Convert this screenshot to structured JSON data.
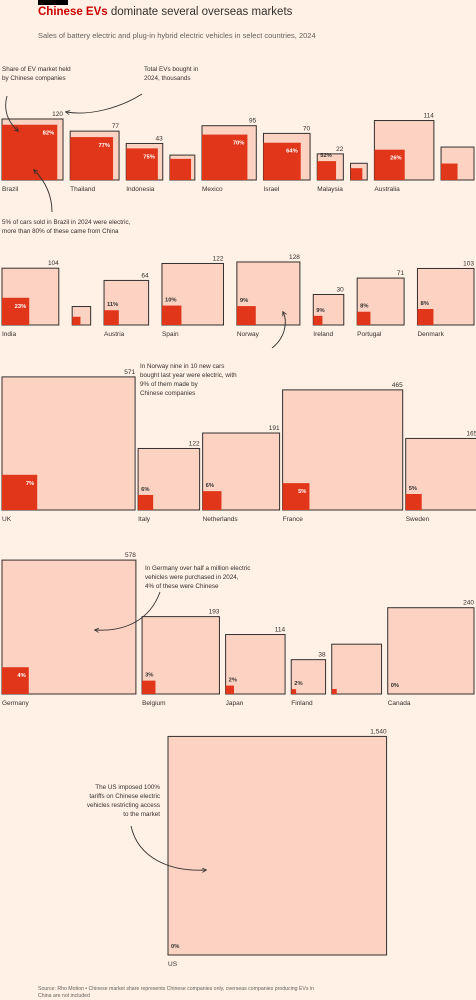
{
  "header": {
    "title_highlight": "Chinese EVs",
    "title_rest": " dominate several overseas markets",
    "subtitle": "Sales of battery electric and plug-in hybrid electric vehicles in select countries, 2024"
  },
  "source": "Source: Rho Motion • Chinese market share represents Chinese companies only, overseas companies producing EVs in China are not included",
  "colors": {
    "background": "#fff1e5",
    "outer_fill": "#fcd3c3",
    "inner_fill": "#e2361a",
    "outline": "#33302e"
  },
  "annotations": [
    {
      "id": "share-label",
      "lines": [
        "Share of EV market held",
        "by Chinese companies"
      ]
    },
    {
      "id": "total-label",
      "lines": [
        "Total EVs bought in",
        "2024, thousands"
      ]
    },
    {
      "id": "brazil-note",
      "lines": [
        "5% of cars sold in Brazil in 2024 were electric,",
        "more than 80% of these came from China"
      ]
    },
    {
      "id": "norway-note",
      "lines": [
        "In Norway nine in 10 new cars",
        "bought last year were electric, with",
        "9% of them made by",
        "Chinese companies"
      ]
    },
    {
      "id": "germany-note",
      "lines": [
        "In Germany over half a million electric",
        "vehicles were purchased in 2024,",
        "4% of these were Chinese"
      ]
    },
    {
      "id": "us-note",
      "lines": [
        "The US imposed 100%",
        "tariffs on Chinese electric",
        "vehicles restricting access",
        "to the market"
      ]
    }
  ],
  "chart_data": {
    "type": "area",
    "title": "Chinese EVs dominate several overseas markets",
    "value_unit": "Total EVs bought in 2024, thousands",
    "share_unit": "Share of EV market held by Chinese companies",
    "countries": [
      {
        "name": "Brazil",
        "total": 120,
        "share": 82,
        "total_label": "120",
        "share_label": "82%"
      },
      {
        "name": "Thailand",
        "total": 77,
        "share": 77,
        "total_label": "77",
        "share_label": "77%"
      },
      {
        "name": "Indonesia",
        "total": 43,
        "share": 75,
        "total_label": "43",
        "share_label": "75%"
      },
      {
        "name": "",
        "total": 20,
        "share": 72,
        "total_label": "",
        "share_label": ""
      },
      {
        "name": "Mexico",
        "total": 95,
        "share": 70,
        "total_label": "95",
        "share_label": "70%"
      },
      {
        "name": "Israel",
        "total": 70,
        "share": 64,
        "total_label": "70",
        "share_label": "64%"
      },
      {
        "name": "Malaysia",
        "total": 22,
        "share": 52,
        "total_label": "22",
        "share_label": "52%"
      },
      {
        "name": "",
        "total": 9,
        "share": 50,
        "total_label": "",
        "share_label": ""
      },
      {
        "name": "Australia",
        "total": 114,
        "share": 26,
        "total_label": "114",
        "share_label": "26%"
      },
      {
        "name": "",
        "total": 35,
        "share": 25,
        "total_label": "",
        "share_label": ""
      },
      {
        "name": "India",
        "total": 104,
        "share": 23,
        "total_label": "104",
        "share_label": "23%"
      },
      {
        "name": "",
        "total": 11,
        "share": 20,
        "total_label": "",
        "share_label": ""
      },
      {
        "name": "Austria",
        "total": 64,
        "share": 11,
        "total_label": "64",
        "share_label": "11%"
      },
      {
        "name": "Spain",
        "total": 122,
        "share": 10,
        "total_label": "122",
        "share_label": "10%"
      },
      {
        "name": "Norway",
        "total": 128,
        "share": 9,
        "total_label": "128",
        "share_label": "9%"
      },
      {
        "name": "Ireland",
        "total": 30,
        "share": 9,
        "total_label": "30",
        "share_label": "9%"
      },
      {
        "name": "Portugal",
        "total": 71,
        "share": 8,
        "total_label": "71",
        "share_label": "8%"
      },
      {
        "name": "Denmark",
        "total": 103,
        "share": 8,
        "total_label": "103",
        "share_label": "8%"
      },
      {
        "name": "UK",
        "total": 571,
        "share": 7,
        "total_label": "571",
        "share_label": "7%"
      },
      {
        "name": "Italy",
        "total": 122,
        "share": 6,
        "total_label": "122",
        "share_label": "6%"
      },
      {
        "name": "Netherlands",
        "total": 191,
        "share": 6,
        "total_label": "191",
        "share_label": "6%"
      },
      {
        "name": "France",
        "total": 465,
        "share": 5,
        "total_label": "465",
        "share_label": "5%"
      },
      {
        "name": "Sweden",
        "total": 165,
        "share": 5,
        "total_label": "165",
        "share_label": "5%"
      },
      {
        "name": "Germany",
        "total": 578,
        "share": 4,
        "total_label": "578",
        "share_label": "4%"
      },
      {
        "name": "Belgium",
        "total": 193,
        "share": 3,
        "total_label": "193",
        "share_label": "3%"
      },
      {
        "name": "Japan",
        "total": 114,
        "share": 2,
        "total_label": "114",
        "share_label": "2%"
      },
      {
        "name": "Finland",
        "total": 38,
        "share": 2,
        "total_label": "38",
        "share_label": "2%"
      },
      {
        "name": "",
        "total": 80,
        "share": 1,
        "total_label": "",
        "share_label": ""
      },
      {
        "name": "Canada",
        "total": 240,
        "share": 0,
        "total_label": "240",
        "share_label": "0%"
      },
      {
        "name": "US",
        "total": 1540,
        "share": 0,
        "total_label": "1,540",
        "share_label": "0%"
      }
    ]
  }
}
